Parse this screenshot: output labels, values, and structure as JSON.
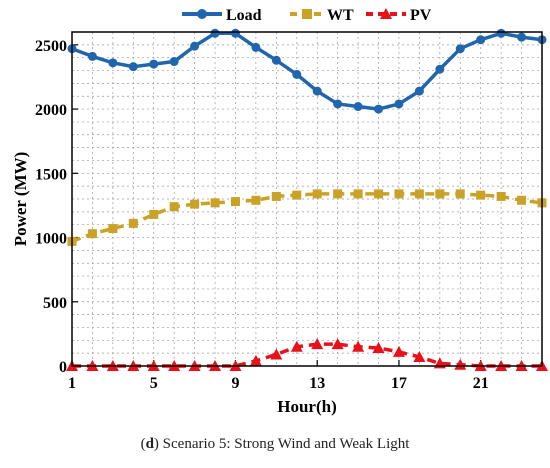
{
  "caption": {
    "letter": "d",
    "text": "Scenario 5: Strong Wind and Weak Light"
  },
  "chart_data": {
    "type": "line",
    "xlabel": "Hour(h)",
    "ylabel": "Power (MW)",
    "xlim": [
      1,
      24
    ],
    "ylim": [
      0,
      2600
    ],
    "x_ticks": [
      1,
      5,
      9,
      13,
      17,
      21
    ],
    "y_ticks": [
      0,
      500,
      1000,
      1500,
      2000,
      2500
    ],
    "grid": true,
    "legend_position": "top",
    "x": [
      1,
      2,
      3,
      4,
      5,
      6,
      7,
      8,
      9,
      10,
      11,
      12,
      13,
      14,
      15,
      16,
      17,
      18,
      19,
      20,
      21,
      22,
      23,
      24
    ],
    "series": [
      {
        "name": "Load",
        "color": "#2166ac",
        "marker": "circle",
        "line_style": "solid",
        "values": [
          2470,
          2410,
          2360,
          2330,
          2350,
          2370,
          2490,
          2590,
          2590,
          2480,
          2380,
          2270,
          2140,
          2040,
          2020,
          2000,
          2040,
          2140,
          2310,
          2470,
          2540,
          2590,
          2560,
          2540
        ]
      },
      {
        "name": "WT",
        "color": "#c9a227",
        "marker": "square",
        "line_style": "dashed",
        "values": [
          970,
          1030,
          1070,
          1110,
          1180,
          1240,
          1260,
          1270,
          1280,
          1290,
          1320,
          1330,
          1340,
          1340,
          1340,
          1340,
          1340,
          1340,
          1340,
          1340,
          1330,
          1320,
          1290,
          1270
        ]
      },
      {
        "name": "PV",
        "color": "#e8101a",
        "marker": "triangle",
        "line_style": "dashed",
        "values": [
          0,
          0,
          0,
          0,
          0,
          0,
          0,
          0,
          0,
          40,
          90,
          150,
          170,
          170,
          150,
          140,
          110,
          70,
          20,
          10,
          0,
          0,
          0,
          0
        ]
      }
    ]
  }
}
